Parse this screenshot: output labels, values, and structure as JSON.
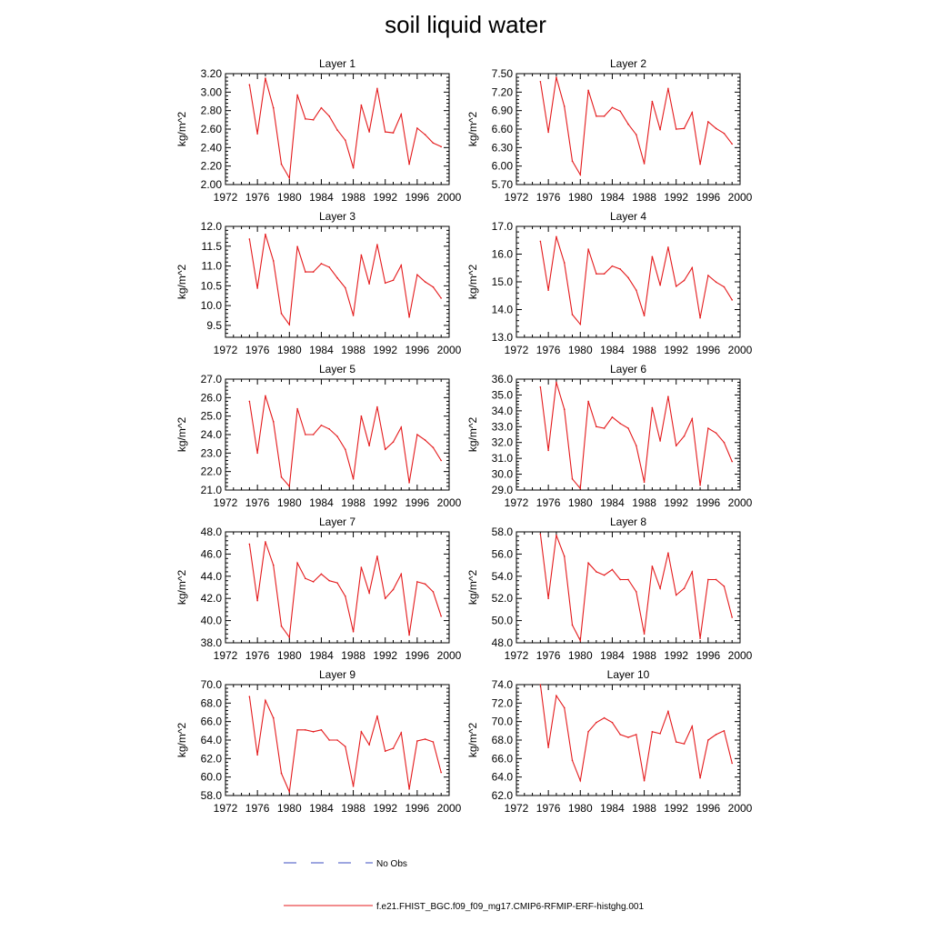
{
  "title": "soil liquid water",
  "colors": {
    "model": "#e41a1c",
    "obs": "#3b4cc0",
    "axis": "#000000"
  },
  "legend": {
    "obs_label": "No Obs",
    "model_label": "f.e21.FHIST_BGC.f09_f09_mg17.CMIP6-RFMIP-ERF-histghg.001"
  },
  "chart_data": [
    {
      "type": "line",
      "title": "Layer 1",
      "ylabel": "kg/m^2",
      "xlim": [
        1972,
        2000
      ],
      "xticks": [
        "1972",
        "1976",
        "1980",
        "1984",
        "1988",
        "1992",
        "1996",
        "2000"
      ],
      "ylim": [
        2.0,
        3.2
      ],
      "yticks": [
        "2.00",
        "2.20",
        "2.40",
        "2.60",
        "2.80",
        "3.00",
        "3.20"
      ],
      "grid": false,
      "x": [
        1975,
        1976,
        1977,
        1978,
        1979,
        1980,
        1981,
        1982,
        1983,
        1984,
        1985,
        1986,
        1987,
        1988,
        1989,
        1990,
        1991,
        1992,
        1993,
        1994,
        1995,
        1996,
        1997,
        1998,
        1999
      ],
      "series": [
        {
          "name": "f.e21.FHIST_BGC.f09_f09_mg17.CMIP6-RFMIP-ERF-histghg.001",
          "values": [
            3.08,
            2.55,
            3.15,
            2.83,
            2.22,
            2.07,
            2.97,
            2.71,
            2.7,
            2.83,
            2.74,
            2.59,
            2.48,
            2.18,
            2.86,
            2.57,
            3.04,
            2.57,
            2.56,
            2.76,
            2.22,
            2.61,
            2.54,
            2.45,
            2.41
          ]
        }
      ]
    },
    {
      "type": "line",
      "title": "Layer 2",
      "ylabel": "kg/m^2",
      "xlim": [
        1972,
        2000
      ],
      "xticks": [
        "1972",
        "1976",
        "1980",
        "1984",
        "1988",
        "1992",
        "1996",
        "2000"
      ],
      "ylim": [
        5.7,
        7.5
      ],
      "yticks": [
        "5.70",
        "6.00",
        "6.30",
        "6.60",
        "6.90",
        "7.20",
        "7.50"
      ],
      "grid": false,
      "x": [
        1975,
        1976,
        1977,
        1978,
        1979,
        1980,
        1981,
        1982,
        1983,
        1984,
        1985,
        1986,
        1987,
        1988,
        1989,
        1990,
        1991,
        1992,
        1993,
        1994,
        1995,
        1996,
        1997,
        1998,
        1999
      ],
      "series": [
        {
          "name": "f.e21.FHIST_BGC.f09_f09_mg17.CMIP6-RFMIP-ERF-histghg.001",
          "values": [
            7.37,
            6.55,
            7.44,
            6.97,
            6.08,
            5.86,
            7.23,
            6.81,
            6.81,
            6.95,
            6.89,
            6.68,
            6.51,
            6.04,
            7.05,
            6.59,
            7.26,
            6.6,
            6.61,
            6.87,
            6.03,
            6.72,
            6.61,
            6.53,
            6.36
          ]
        }
      ]
    },
    {
      "type": "line",
      "title": "Layer 3",
      "ylabel": "kg/m^2",
      "xlim": [
        1972,
        2000
      ],
      "xticks": [
        "1972",
        "1976",
        "1980",
        "1984",
        "1988",
        "1992",
        "1996",
        "2000"
      ],
      "ylim": [
        9.2,
        12.0
      ],
      "yticks": [
        "9.5",
        "10.0",
        "10.5",
        "11.0",
        "11.5",
        "12.0"
      ],
      "grid": false,
      "x": [
        1975,
        1976,
        1977,
        1978,
        1979,
        1980,
        1981,
        1982,
        1983,
        1984,
        1985,
        1986,
        1987,
        1988,
        1989,
        1990,
        1991,
        1992,
        1993,
        1994,
        1995,
        1996,
        1997,
        1998,
        1999
      ],
      "series": [
        {
          "name": "f.e21.FHIST_BGC.f09_f09_mg17.CMIP6-RFMIP-ERF-histghg.001",
          "values": [
            11.68,
            10.44,
            11.8,
            11.13,
            9.8,
            9.52,
            11.49,
            10.85,
            10.85,
            11.06,
            10.97,
            10.7,
            10.45,
            9.75,
            11.28,
            10.55,
            11.54,
            10.57,
            10.64,
            11.02,
            9.71,
            10.78,
            10.6,
            10.47,
            10.19
          ]
        }
      ]
    },
    {
      "type": "line",
      "title": "Layer 4",
      "ylabel": "kg/m^2",
      "xlim": [
        1972,
        2000
      ],
      "xticks": [
        "1972",
        "1976",
        "1980",
        "1984",
        "1988",
        "1992",
        "1996",
        "2000"
      ],
      "ylim": [
        13.0,
        17.0
      ],
      "yticks": [
        "13.0",
        "14.0",
        "15.0",
        "16.0",
        "17.0"
      ],
      "grid": false,
      "x": [
        1975,
        1976,
        1977,
        1978,
        1979,
        1980,
        1981,
        1982,
        1983,
        1984,
        1985,
        1986,
        1987,
        1988,
        1989,
        1990,
        1991,
        1992,
        1993,
        1994,
        1995,
        1996,
        1997,
        1998,
        1999
      ],
      "series": [
        {
          "name": "f.e21.FHIST_BGC.f09_f09_mg17.CMIP6-RFMIP-ERF-histghg.001",
          "values": [
            16.46,
            14.7,
            16.63,
            15.69,
            13.82,
            13.47,
            16.18,
            15.29,
            15.29,
            15.57,
            15.46,
            15.15,
            14.7,
            13.78,
            15.91,
            14.88,
            16.25,
            14.84,
            15.05,
            15.51,
            13.7,
            15.23,
            14.99,
            14.82,
            14.35
          ]
        }
      ]
    },
    {
      "type": "line",
      "title": "Layer 5",
      "ylabel": "kg/m^2",
      "xlim": [
        1972,
        2000
      ],
      "xticks": [
        "1972",
        "1976",
        "1980",
        "1984",
        "1988",
        "1992",
        "1996",
        "2000"
      ],
      "ylim": [
        21.0,
        27.0
      ],
      "yticks": [
        "21.0",
        "22.0",
        "23.0",
        "24.0",
        "25.0",
        "26.0",
        "27.0"
      ],
      "grid": false,
      "x": [
        1975,
        1976,
        1977,
        1978,
        1979,
        1980,
        1981,
        1982,
        1983,
        1984,
        1985,
        1986,
        1987,
        1988,
        1989,
        1990,
        1991,
        1992,
        1993,
        1994,
        1995,
        1996,
        1997,
        1998,
        1999
      ],
      "series": [
        {
          "name": "f.e21.FHIST_BGC.f09_f09_mg17.CMIP6-RFMIP-ERF-histghg.001",
          "values": [
            25.8,
            23.0,
            26.1,
            24.7,
            21.7,
            21.2,
            25.4,
            24.0,
            24.0,
            24.5,
            24.3,
            23.9,
            23.2,
            21.6,
            25.0,
            23.4,
            25.5,
            23.2,
            23.6,
            24.4,
            21.4,
            24.0,
            23.7,
            23.3,
            22.6
          ]
        }
      ]
    },
    {
      "type": "line",
      "title": "Layer 6",
      "ylabel": "kg/m^2",
      "xlim": [
        1972,
        2000
      ],
      "xticks": [
        "1972",
        "1976",
        "1980",
        "1984",
        "1988",
        "1992",
        "1996",
        "2000"
      ],
      "ylim": [
        29.0,
        36.0
      ],
      "yticks": [
        "29.0",
        "30.0",
        "31.0",
        "32.0",
        "33.0",
        "34.0",
        "35.0",
        "36.0"
      ],
      "grid": false,
      "x": [
        1975,
        1976,
        1977,
        1978,
        1979,
        1980,
        1981,
        1982,
        1983,
        1984,
        1985,
        1986,
        1987,
        1988,
        1989,
        1990,
        1991,
        1992,
        1993,
        1994,
        1995,
        1996,
        1997,
        1998,
        1999
      ],
      "series": [
        {
          "name": "f.e21.FHIST_BGC.f09_f09_mg17.CMIP6-RFMIP-ERF-histghg.001",
          "values": [
            35.5,
            31.5,
            35.8,
            34.1,
            29.7,
            29.1,
            34.6,
            33.0,
            32.9,
            33.6,
            33.2,
            32.9,
            31.8,
            29.5,
            34.2,
            32.1,
            34.9,
            31.8,
            32.4,
            33.5,
            29.3,
            32.9,
            32.6,
            32.0,
            30.8
          ]
        }
      ]
    },
    {
      "type": "line",
      "title": "Layer 7",
      "ylabel": "kg/m^2",
      "xlim": [
        1972,
        2000
      ],
      "xticks": [
        "1972",
        "1976",
        "1980",
        "1984",
        "1988",
        "1992",
        "1996",
        "2000"
      ],
      "ylim": [
        38.0,
        48.0
      ],
      "yticks": [
        "38.0",
        "40.0",
        "42.0",
        "44.0",
        "46.0",
        "48.0"
      ],
      "grid": false,
      "x": [
        1975,
        1976,
        1977,
        1978,
        1979,
        1980,
        1981,
        1982,
        1983,
        1984,
        1985,
        1986,
        1987,
        1988,
        1989,
        1990,
        1991,
        1992,
        1993,
        1994,
        1995,
        1996,
        1997,
        1998,
        1999
      ],
      "series": [
        {
          "name": "f.e21.FHIST_BGC.f09_f09_mg17.CMIP6-RFMIP-ERF-histghg.001",
          "values": [
            46.9,
            41.8,
            47.1,
            45.0,
            39.5,
            38.5,
            45.2,
            43.8,
            43.5,
            44.2,
            43.6,
            43.4,
            42.2,
            39.0,
            44.8,
            42.5,
            45.8,
            42.0,
            42.8,
            44.2,
            38.7,
            43.5,
            43.3,
            42.6,
            40.4
          ]
        }
      ]
    },
    {
      "type": "line",
      "title": "Layer 8",
      "ylabel": "kg/m^2",
      "xlim": [
        1972,
        2000
      ],
      "xticks": [
        "1972",
        "1976",
        "1980",
        "1984",
        "1988",
        "1992",
        "1996",
        "2000"
      ],
      "ylim": [
        48.0,
        58.0
      ],
      "yticks": [
        "48.0",
        "50.0",
        "52.0",
        "54.0",
        "56.0",
        "58.0"
      ],
      "grid": false,
      "x": [
        1975,
        1976,
        1977,
        1978,
        1979,
        1980,
        1981,
        1982,
        1983,
        1984,
        1985,
        1986,
        1987,
        1988,
        1989,
        1990,
        1991,
        1992,
        1993,
        1994,
        1995,
        1996,
        1997,
        1998,
        1999
      ],
      "series": [
        {
          "name": "f.e21.FHIST_BGC.f09_f09_mg17.CMIP6-RFMIP-ERF-histghg.001",
          "values": [
            57.8,
            52.0,
            57.7,
            55.8,
            49.6,
            48.2,
            55.2,
            54.4,
            54.1,
            54.6,
            53.7,
            53.7,
            52.6,
            48.8,
            54.9,
            52.9,
            56.1,
            52.3,
            52.9,
            54.4,
            48.4,
            53.7,
            53.7,
            53.1,
            50.3
          ]
        }
      ]
    },
    {
      "type": "line",
      "title": "Layer 9",
      "ylabel": "kg/m^2",
      "xlim": [
        1972,
        2000
      ],
      "xticks": [
        "1972",
        "1976",
        "1980",
        "1984",
        "1988",
        "1992",
        "1996",
        "2000"
      ],
      "ylim": [
        58.0,
        70.0
      ],
      "yticks": [
        "58.0",
        "60.0",
        "62.0",
        "64.0",
        "66.0",
        "68.0",
        "70.0"
      ],
      "grid": false,
      "x": [
        1975,
        1976,
        1977,
        1978,
        1979,
        1980,
        1981,
        1982,
        1983,
        1984,
        1985,
        1986,
        1987,
        1988,
        1989,
        1990,
        1991,
        1992,
        1993,
        1994,
        1995,
        1996,
        1997,
        1998,
        1999
      ],
      "series": [
        {
          "name": "f.e21.FHIST_BGC.f09_f09_mg17.CMIP6-RFMIP-ERF-histghg.001",
          "values": [
            68.7,
            62.4,
            68.3,
            66.4,
            60.4,
            58.4,
            65.1,
            65.1,
            64.9,
            65.1,
            64.0,
            64.0,
            63.3,
            59.0,
            64.9,
            63.5,
            66.6,
            62.8,
            63.1,
            64.8,
            58.7,
            63.9,
            64.1,
            63.8,
            60.5
          ]
        }
      ]
    },
    {
      "type": "line",
      "title": "Layer 10",
      "ylabel": "kg/m^2",
      "xlim": [
        1972,
        2000
      ],
      "xticks": [
        "1972",
        "1976",
        "1980",
        "1984",
        "1988",
        "1992",
        "1996",
        "2000"
      ],
      "ylim": [
        62.0,
        74.0
      ],
      "yticks": [
        "62.0",
        "64.0",
        "66.0",
        "68.0",
        "70.0",
        "72.0",
        "74.0"
      ],
      "grid": false,
      "x": [
        1975,
        1976,
        1977,
        1978,
        1979,
        1980,
        1981,
        1982,
        1983,
        1984,
        1985,
        1986,
        1987,
        1988,
        1989,
        1990,
        1991,
        1992,
        1993,
        1994,
        1995,
        1996,
        1997,
        1998,
        1999
      ],
      "series": [
        {
          "name": "f.e21.FHIST_BGC.f09_f09_mg17.CMIP6-RFMIP-ERF-histghg.001",
          "values": [
            74.0,
            67.2,
            72.8,
            71.5,
            65.8,
            63.6,
            68.9,
            69.9,
            70.4,
            69.9,
            68.6,
            68.3,
            68.6,
            63.6,
            68.9,
            68.7,
            71.1,
            67.8,
            67.6,
            69.5,
            63.9,
            68.0,
            68.6,
            69.0,
            65.5
          ]
        }
      ]
    }
  ]
}
